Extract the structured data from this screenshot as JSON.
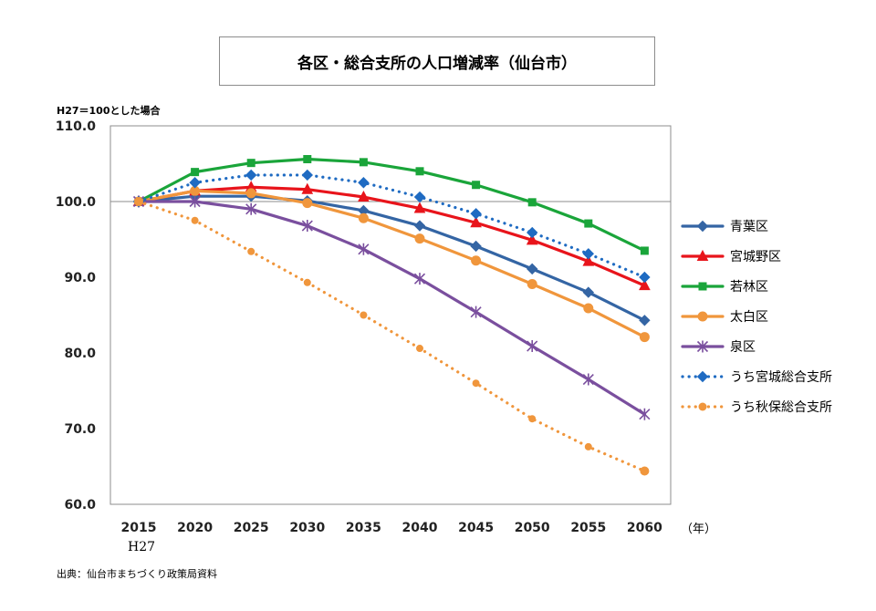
{
  "chart_data": {
    "type": "line",
    "title": "各区・総合支所の人口増減率（仙台市）",
    "subtitle": "H27＝100とした場合",
    "xlabel": "（年）",
    "x_sublabel": "H27",
    "ylabel": "",
    "ylim": [
      60,
      110
    ],
    "y_ticks": [
      "60.0",
      "70.0",
      "80.0",
      "90.0",
      "100.0",
      "110.0"
    ],
    "grid": false,
    "legend_position": "right",
    "categories": [
      "2015",
      "2020",
      "2025",
      "2030",
      "2035",
      "2040",
      "2045",
      "2050",
      "2055",
      "2060"
    ],
    "series": [
      {
        "name": "青葉区",
        "color": "#3465a4",
        "style": "solid",
        "marker": "diamond",
        "values": [
          100.0,
          100.7,
          100.7,
          100.1,
          98.8,
          96.8,
          94.1,
          91.1,
          88.0,
          84.3
        ]
      },
      {
        "name": "宮城野区",
        "color": "#e8141b",
        "style": "solid",
        "marker": "triangle",
        "values": [
          100.0,
          101.4,
          101.9,
          101.6,
          100.6,
          99.1,
          97.2,
          94.9,
          92.1,
          88.9
        ]
      },
      {
        "name": "若林区",
        "color": "#1aa53a",
        "style": "solid",
        "marker": "square",
        "values": [
          100.0,
          103.9,
          105.1,
          105.6,
          105.2,
          104.0,
          102.2,
          99.9,
          97.1,
          93.5
        ]
      },
      {
        "name": "太白区",
        "color": "#f0963c",
        "style": "solid",
        "marker": "circle",
        "values": [
          100.0,
          101.4,
          101.1,
          99.8,
          97.8,
          95.1,
          92.2,
          89.1,
          85.9,
          82.1
        ]
      },
      {
        "name": "泉区",
        "color": "#7a4f9e",
        "style": "solid",
        "marker": "asterisk",
        "values": [
          100.0,
          100.0,
          99.0,
          96.8,
          93.7,
          89.8,
          85.4,
          80.9,
          76.5,
          71.9
        ]
      },
      {
        "name": "うち宮城総合支所",
        "color": "#1f6bc2",
        "style": "dotted",
        "marker": "diamond",
        "values": [
          100.0,
          102.5,
          103.5,
          103.5,
          102.5,
          100.6,
          98.4,
          95.9,
          93.1,
          90.0
        ]
      },
      {
        "name": "うち秋保総合支所",
        "color": "#f0963c",
        "style": "dotted",
        "marker": "circle",
        "values": [
          100.0,
          97.5,
          93.4,
          89.3,
          85.0,
          80.6,
          76.0,
          71.3,
          67.6,
          64.4
        ]
      }
    ]
  },
  "source": "出典：仙台市まちづくり政策局資料"
}
